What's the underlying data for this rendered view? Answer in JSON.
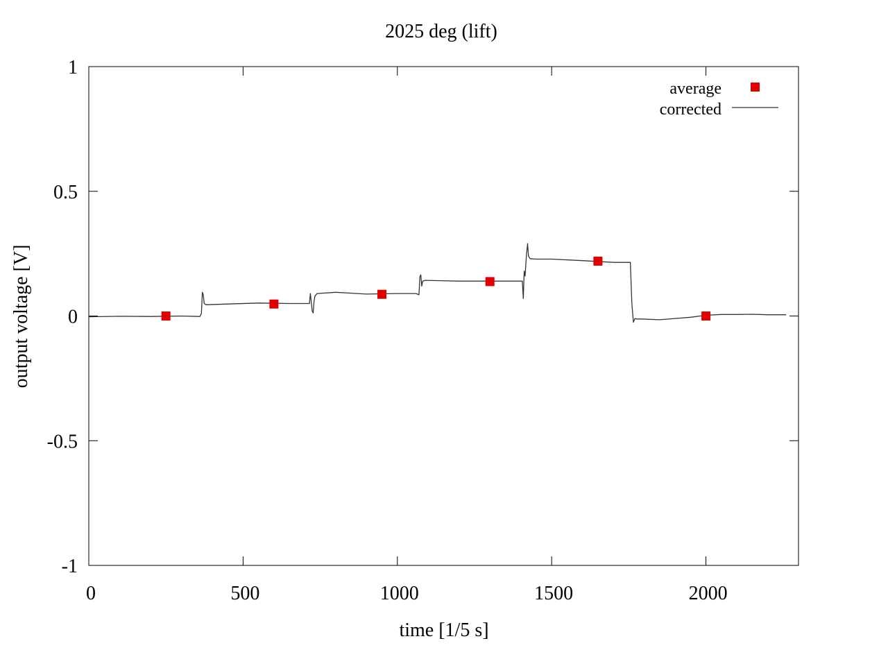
{
  "chart_data": {
    "type": "line",
    "title": "2025 deg (lift)",
    "xlabel": "time [1/5 s]",
    "ylabel": "output voltage [V]",
    "xlim": [
      0,
      2300
    ],
    "ylim": [
      -1,
      1
    ],
    "xticks": [
      0,
      500,
      1000,
      1500,
      2000
    ],
    "xtick_labels": [
      "0",
      "500",
      "1000",
      "1500",
      "2000"
    ],
    "yticks": [
      -1,
      -0.5,
      0,
      0.5,
      1
    ],
    "ytick_labels": [
      "-1",
      "-0.5",
      "0",
      "0.5",
      "1"
    ],
    "grid": false,
    "legend_position": "top-right",
    "series": [
      {
        "name": "average",
        "kind": "points",
        "marker": "square",
        "color": "#e00000",
        "x": [
          250,
          600,
          950,
          1300,
          1650,
          2000
        ],
        "y": [
          0.0,
          0.048,
          0.087,
          0.138,
          0.22,
          0.0
        ]
      },
      {
        "name": "corrected",
        "kind": "line",
        "color": "#000000",
        "x": [
          0,
          100,
          200,
          300,
          360,
          365,
          368,
          371,
          374,
          380,
          450,
          550,
          650,
          715,
          718,
          721,
          724,
          727,
          730,
          733,
          740,
          800,
          900,
          1000,
          1060,
          1070,
          1073,
          1076,
          1079,
          1082,
          1090,
          1200,
          1300,
          1405,
          1408,
          1411,
          1414,
          1418,
          1422,
          1425,
          1430,
          1450,
          1500,
          1600,
          1700,
          1755,
          1760,
          1765,
          1770,
          1775,
          1790,
          1850,
          1900,
          1950,
          2000,
          2050,
          2100,
          2150,
          2200,
          2260
        ],
        "y": [
          -0.003,
          -0.001,
          -0.002,
          0.0,
          -0.002,
          0.01,
          0.095,
          0.085,
          0.05,
          0.045,
          0.048,
          0.052,
          0.05,
          0.05,
          0.09,
          0.055,
          0.02,
          0.012,
          0.06,
          0.08,
          0.09,
          0.095,
          0.088,
          0.09,
          0.09,
          0.085,
          0.158,
          0.165,
          0.12,
          0.14,
          0.143,
          0.14,
          0.14,
          0.14,
          0.07,
          0.18,
          0.16,
          0.24,
          0.29,
          0.24,
          0.23,
          0.228,
          0.228,
          0.222,
          0.215,
          0.215,
          0.05,
          -0.025,
          -0.01,
          -0.012,
          -0.012,
          -0.015,
          -0.01,
          -0.005,
          0.003,
          0.006,
          0.006,
          0.007,
          0.005,
          0.005
        ]
      }
    ]
  },
  "legend": {
    "entries": [
      "average",
      "corrected"
    ]
  }
}
